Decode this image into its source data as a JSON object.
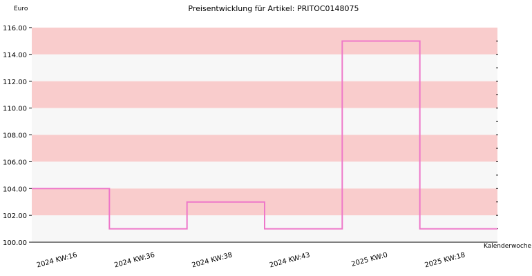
{
  "chart_data": {
    "type": "line",
    "title": "Preisentwicklung für Artikel: PRITOC0148075",
    "ylabel": "Euro",
    "xlabel": "Kalenderwoche",
    "ylim": [
      100,
      116
    ],
    "yticks": [
      "100.00",
      "102.00",
      "104.00",
      "106.00",
      "108.00",
      "110.00",
      "112.00",
      "114.00",
      "116.00"
    ],
    "categories": [
      "2024 KW:16",
      "2024 KW:36",
      "2024 KW:38",
      "2024 KW:43",
      "2025 KW:0",
      "2025 KW:18"
    ],
    "line_style": "step",
    "series": [
      {
        "values": [
          104,
          101,
          103,
          101,
          115,
          101
        ]
      }
    ],
    "band_colors": [
      "#f9cccc",
      "#f7f7f7"
    ],
    "line_color": "#ee77c9",
    "grid": false
  }
}
